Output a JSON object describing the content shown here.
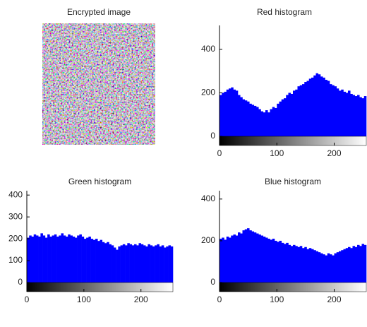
{
  "image_panel": {
    "title": "Encrypted image"
  },
  "chart_data": [
    {
      "type": "histogram",
      "title": "Red histogram",
      "color": "#0000ff",
      "bins": [
        0,
        4,
        8,
        12,
        16,
        20,
        24,
        28,
        32,
        36,
        40,
        44,
        48,
        52,
        56,
        60,
        64,
        68,
        72,
        76,
        80,
        84,
        88,
        92,
        96,
        100,
        104,
        108,
        112,
        116,
        120,
        124,
        128,
        132,
        136,
        140,
        144,
        148,
        152,
        156,
        160,
        164,
        168,
        172,
        176,
        180,
        184,
        188,
        192,
        196,
        200,
        204,
        208,
        212,
        216,
        220,
        224,
        228,
        232,
        236,
        240,
        244,
        248,
        252,
        256
      ],
      "values": [
        190,
        200,
        205,
        215,
        220,
        225,
        215,
        210,
        190,
        180,
        170,
        165,
        160,
        150,
        145,
        140,
        135,
        125,
        115,
        110,
        120,
        110,
        125,
        135,
        130,
        150,
        160,
        170,
        175,
        190,
        200,
        195,
        210,
        215,
        230,
        235,
        240,
        250,
        255,
        265,
        270,
        280,
        290,
        285,
        275,
        270,
        260,
        255,
        240,
        235,
        230,
        220,
        210,
        215,
        205,
        200,
        210,
        195,
        190,
        185,
        190,
        180,
        175,
        185
      ],
      "xlim": [
        0,
        256
      ],
      "xticks": [
        0,
        100,
        200
      ],
      "ylim": [
        0,
        510
      ],
      "yticks": [
        0,
        200,
        400
      ]
    },
    {
      "type": "histogram",
      "title": "Green histogram",
      "color": "#0000ff",
      "bins": [
        0,
        4,
        8,
        12,
        16,
        20,
        24,
        28,
        32,
        36,
        40,
        44,
        48,
        52,
        56,
        60,
        64,
        68,
        72,
        76,
        80,
        84,
        88,
        92,
        96,
        100,
        104,
        108,
        112,
        116,
        120,
        124,
        128,
        132,
        136,
        140,
        144,
        148,
        152,
        156,
        160,
        164,
        168,
        172,
        176,
        180,
        184,
        188,
        192,
        196,
        200,
        204,
        208,
        212,
        216,
        220,
        224,
        228,
        232,
        236,
        240,
        244,
        248,
        252,
        256
      ],
      "values": [
        205,
        215,
        210,
        220,
        215,
        210,
        225,
        215,
        205,
        220,
        210,
        215,
        220,
        210,
        215,
        225,
        215,
        210,
        220,
        215,
        210,
        205,
        215,
        220,
        210,
        200,
        205,
        210,
        200,
        195,
        200,
        190,
        195,
        185,
        180,
        185,
        175,
        170,
        160,
        150,
        165,
        170,
        175,
        170,
        180,
        175,
        170,
        175,
        170,
        180,
        175,
        170,
        165,
        175,
        170,
        165,
        170,
        175,
        165,
        170,
        160,
        165,
        170,
        165
      ],
      "xlim": [
        0,
        256
      ],
      "xticks": [
        0,
        100,
        200
      ],
      "ylim": [
        0,
        420
      ],
      "yticks": [
        0,
        100,
        200,
        300,
        400
      ]
    },
    {
      "type": "histogram",
      "title": "Blue histogram",
      "color": "#0000ff",
      "bins": [
        0,
        4,
        8,
        12,
        16,
        20,
        24,
        28,
        32,
        36,
        40,
        44,
        48,
        52,
        56,
        60,
        64,
        68,
        72,
        76,
        80,
        84,
        88,
        92,
        96,
        100,
        104,
        108,
        112,
        116,
        120,
        124,
        128,
        132,
        136,
        140,
        144,
        148,
        152,
        156,
        160,
        164,
        168,
        172,
        176,
        180,
        184,
        188,
        192,
        196,
        200,
        204,
        208,
        212,
        216,
        220,
        224,
        228,
        232,
        236,
        240,
        244,
        248,
        252,
        256
      ],
      "values": [
        210,
        215,
        205,
        220,
        215,
        225,
        230,
        225,
        240,
        235,
        250,
        255,
        260,
        250,
        245,
        240,
        235,
        230,
        225,
        220,
        215,
        210,
        205,
        210,
        200,
        195,
        200,
        190,
        185,
        190,
        180,
        175,
        180,
        175,
        170,
        175,
        165,
        170,
        160,
        165,
        160,
        155,
        150,
        145,
        140,
        135,
        130,
        140,
        135,
        130,
        140,
        145,
        150,
        155,
        160,
        165,
        170,
        165,
        175,
        170,
        180,
        175,
        185,
        180
      ],
      "xlim": [
        0,
        256
      ],
      "xticks": [
        0,
        100,
        200
      ],
      "ylim": [
        0,
        440
      ],
      "yticks": [
        0,
        200,
        400
      ]
    }
  ]
}
